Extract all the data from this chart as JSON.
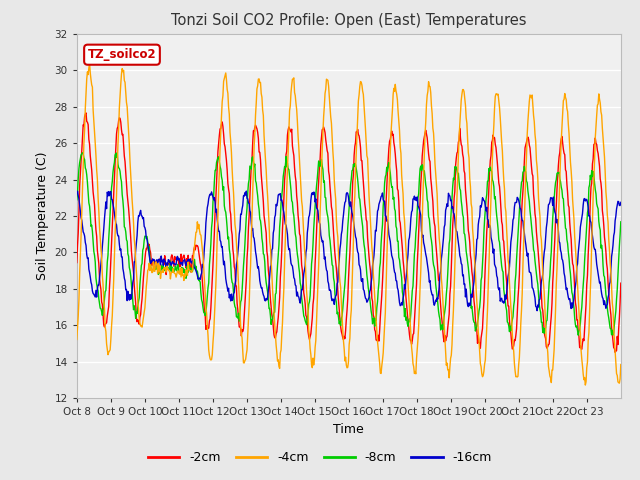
{
  "title": "Tonzi Soil CO2 Profile: Open (East) Temperatures",
  "xlabel": "Time",
  "ylabel": "Soil Temperature (C)",
  "ylim": [
    12,
    32
  ],
  "yticks": [
    12,
    14,
    16,
    18,
    20,
    22,
    24,
    26,
    28,
    30,
    32
  ],
  "xtick_labels": [
    "Oct 8",
    "Oct 9",
    "Oct 10",
    "Oct 11",
    "Oct 12",
    "Oct 13",
    "Oct 14",
    "Oct 15",
    "Oct 16",
    "Oct 17",
    "Oct 18",
    "Oct 19",
    "Oct 20",
    "Oct 21",
    "Oct 22",
    "Oct 23"
  ],
  "series_colors": [
    "#ff0000",
    "#ffa500",
    "#00cc00",
    "#0000cc"
  ],
  "series_labels": [
    "-2cm",
    "-4cm",
    "-8cm",
    "-16cm"
  ],
  "legend_label": "TZ_soilco2",
  "legend_color": "#cc0000",
  "background_color": "#e8e8e8",
  "plot_bg_color": "#f0f0f0",
  "n_days": 16,
  "pts_per_day": 48
}
